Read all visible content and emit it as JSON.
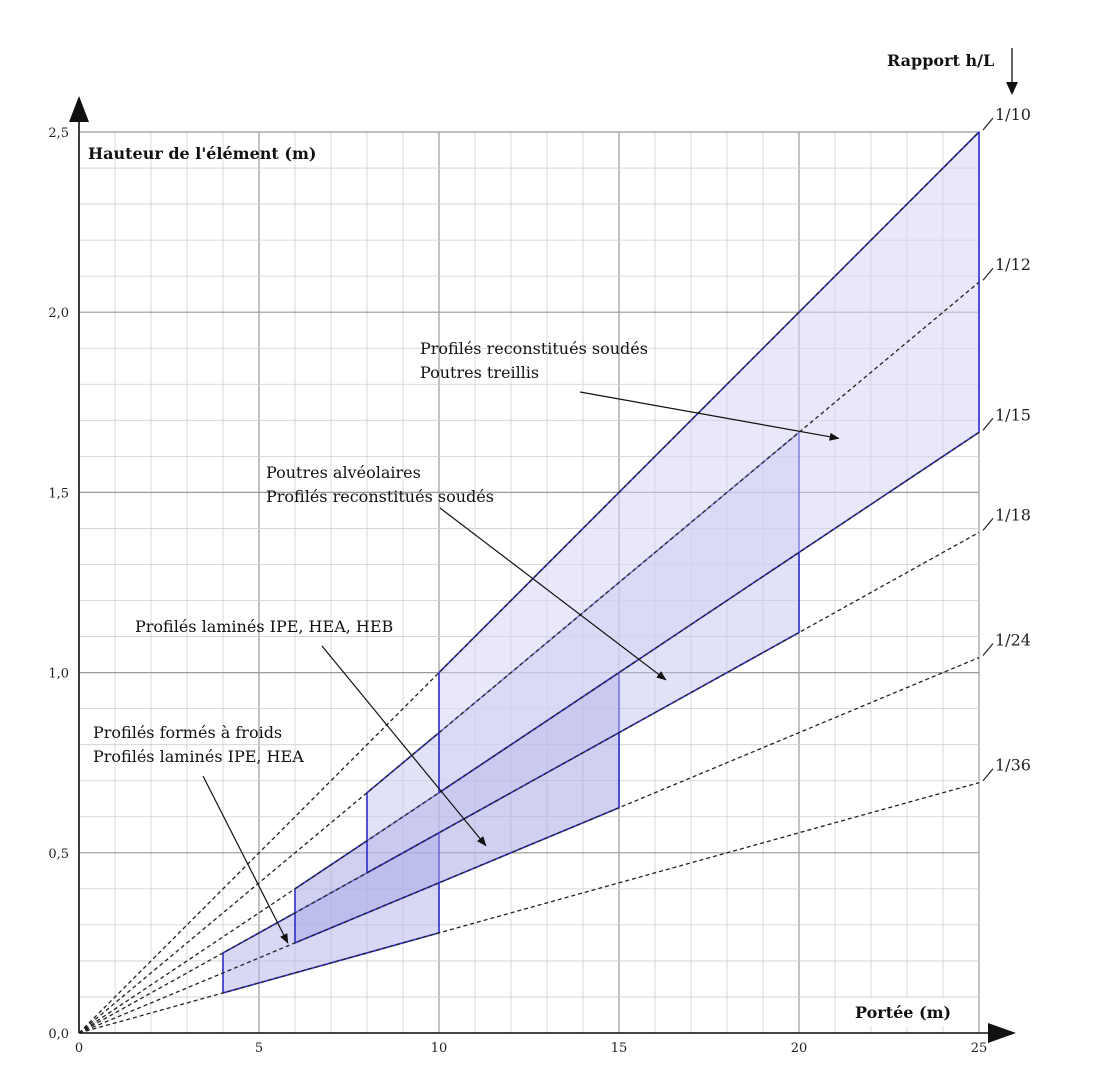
{
  "chart_data": {
    "type": "area",
    "title": "",
    "xlabel": "Portée (m)",
    "ylabel": "Hauteur de l'élément (m)",
    "ratio_header": "Rapport h/L",
    "xlim": [
      0,
      25
    ],
    "ylim": [
      0,
      2.5
    ],
    "x_ticks": [
      {
        "value": 0,
        "label": "0"
      },
      {
        "value": 5,
        "label": "5"
      },
      {
        "value": 10,
        "label": "10"
      },
      {
        "value": 15,
        "label": "15"
      },
      {
        "value": 20,
        "label": "20"
      },
      {
        "value": 25,
        "label": "25"
      }
    ],
    "y_ticks": [
      {
        "value": 0,
        "label": "0,0"
      },
      {
        "value": 0.5,
        "label": "0,5"
      },
      {
        "value": 1.0,
        "label": "1,0"
      },
      {
        "value": 1.5,
        "label": "1,5"
      },
      {
        "value": 2.0,
        "label": "2,0"
      },
      {
        "value": 2.5,
        "label": "2,5"
      }
    ],
    "grid": {
      "major_step_x": 5,
      "minor_step_x": 1,
      "major_step_y": 0.5,
      "minor_step_y": 0.1
    },
    "ratio_lines": [
      {
        "label": "1/10",
        "slope": 0.1
      },
      {
        "label": "1/12",
        "slope": 0.08333
      },
      {
        "label": "1/15",
        "slope": 0.06667
      },
      {
        "label": "1/18",
        "slope": 0.05556
      },
      {
        "label": "1/24",
        "slope": 0.04167
      },
      {
        "label": "1/36",
        "slope": 0.02778
      }
    ],
    "regions": [
      {
        "name": "profiles-formes-a-froid",
        "x_range": [
          4,
          10
        ],
        "upper_ratio": 0.05556,
        "lower_ratio": 0.02778,
        "fill": "#b8b8ec",
        "fill_opacity": 0.55
      },
      {
        "name": "profiles-lamines",
        "x_range": [
          6,
          15
        ],
        "upper_ratio": 0.06667,
        "lower_ratio": 0.04167,
        "fill": "#a9a9e6",
        "fill_opacity": 0.55
      },
      {
        "name": "poutres-alveolaires",
        "x_range": [
          8,
          20
        ],
        "upper_ratio": 0.08333,
        "lower_ratio": 0.05556,
        "fill": "#c3c3ef",
        "fill_opacity": 0.5
      },
      {
        "name": "profiles-reconstitues",
        "x_range": [
          10,
          25
        ],
        "upper_ratio": 0.1,
        "lower_ratio": 0.06667,
        "fill": "#d6d6f5",
        "fill_opacity": 0.55
      }
    ],
    "annotations": [
      {
        "lines": [
          "Profilés reconstitués soudés",
          "Poutres treillis"
        ],
        "arrow_to": [
          21.1,
          1.65
        ]
      },
      {
        "lines": [
          "Poutres alvéolaires",
          "Profilés reconstitués soudés"
        ],
        "arrow_to": [
          16.3,
          0.98
        ]
      },
      {
        "lines": [
          "Profilés laminés IPE, HEA, HEB"
        ],
        "arrow_to": [
          11.3,
          0.52
        ]
      },
      {
        "lines": [
          "Profilés formés à froids",
          "Profilés laminés IPE, HEA"
        ],
        "arrow_to": [
          5.8,
          0.25
        ]
      }
    ],
    "colors": {
      "region_stroke": "#2d2dc8",
      "ratio_line": "#222222",
      "grid_major": "#9a9a9a",
      "grid_minor": "#cfcfcf"
    }
  }
}
